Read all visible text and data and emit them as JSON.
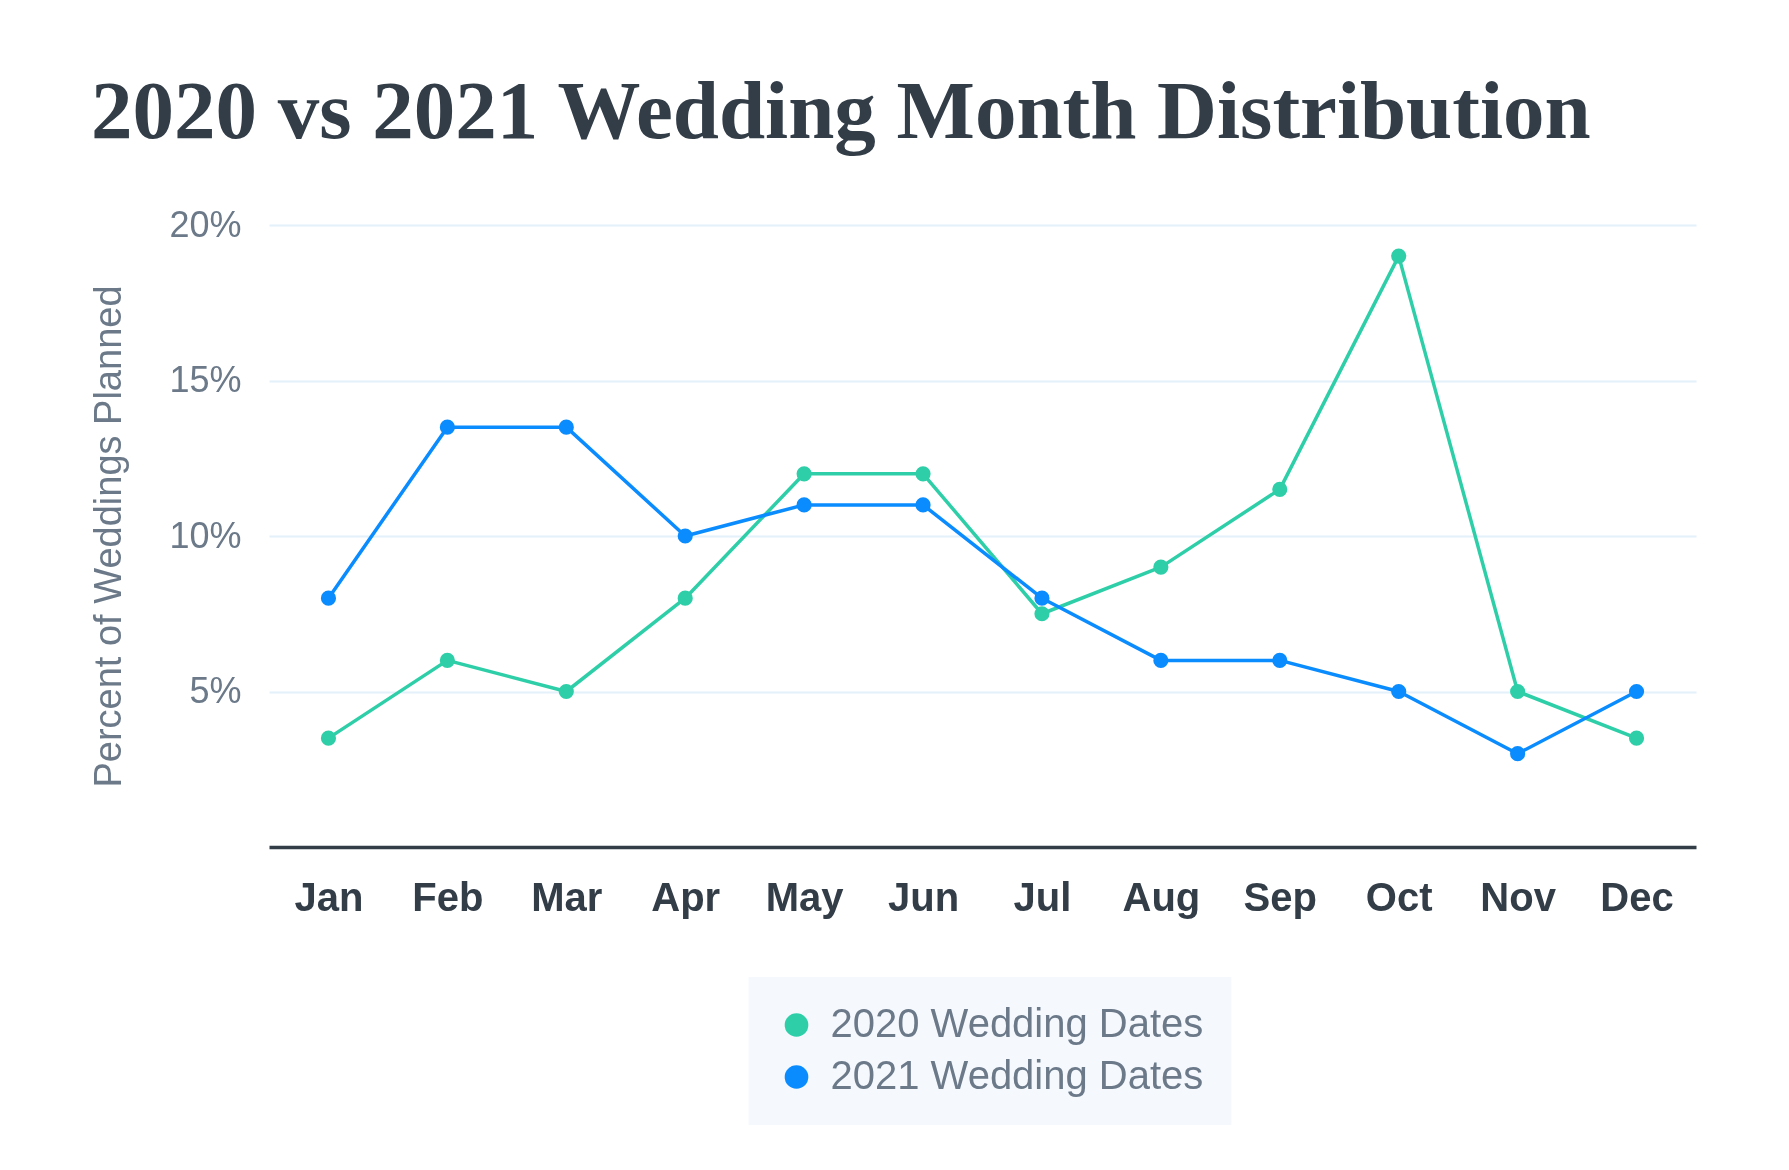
{
  "chart_data": {
    "type": "line",
    "title": "2020 vs 2021 Wedding Month Distribution",
    "ylabel": "Percent of Weddings Planned",
    "categories": [
      "Jan",
      "Feb",
      "Mar",
      "Apr",
      "May",
      "Jun",
      "Jul",
      "Aug",
      "Sep",
      "Oct",
      "Nov",
      "Dec"
    ],
    "series": [
      {
        "name": "2020 Wedding Dates",
        "color": "#2ecfa8",
        "values": [
          3.5,
          6,
          5,
          8,
          12,
          12,
          7.5,
          9,
          11.5,
          19,
          5,
          3.5
        ]
      },
      {
        "name": "2021 Wedding Dates",
        "color": "#0a8cff",
        "values": [
          8,
          13.5,
          13.5,
          10,
          11,
          11,
          8,
          6,
          6,
          5,
          3,
          5
        ]
      }
    ],
    "ylim": [
      0,
      20
    ],
    "yticks": [
      {
        "value": 5,
        "label": "5%"
      },
      {
        "value": 10,
        "label": "10%"
      },
      {
        "value": 15,
        "label": "15%"
      },
      {
        "value": 20,
        "label": "20%"
      }
    ],
    "grid": "y",
    "legend": "bottom",
    "marker": "circle",
    "line_style": "solid"
  }
}
